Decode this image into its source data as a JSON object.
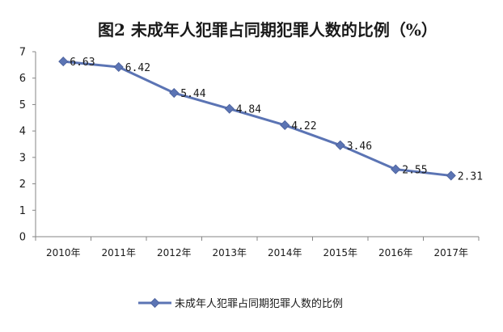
{
  "chart_data": {
    "type": "line",
    "title": "图2 未成年人犯罪占同期犯罪人数的比例（%）",
    "categories": [
      "2010年",
      "2011年",
      "2012年",
      "2013年",
      "2014年",
      "2015年",
      "2016年",
      "2017年"
    ],
    "series": [
      {
        "name": "未成年人犯罪占同期犯罪人数的比例",
        "values": [
          6.63,
          6.42,
          5.44,
          4.84,
          4.22,
          3.46,
          2.55,
          2.31
        ],
        "data_labels": [
          "6.63",
          "6.42",
          "5.44",
          "4.84",
          "4.22",
          "3.46",
          "2.55",
          "2.31"
        ],
        "color": "#5b74b4",
        "marker": "diamond"
      }
    ],
    "ylim": [
      0,
      7
    ],
    "yticks": [
      0,
      1,
      2,
      3,
      4,
      5,
      6,
      7
    ],
    "ytick_labels": [
      "0",
      "1",
      "2",
      "3",
      "4",
      "5",
      "6",
      "7"
    ],
    "grid": false,
    "legend_position": "bottom"
  }
}
